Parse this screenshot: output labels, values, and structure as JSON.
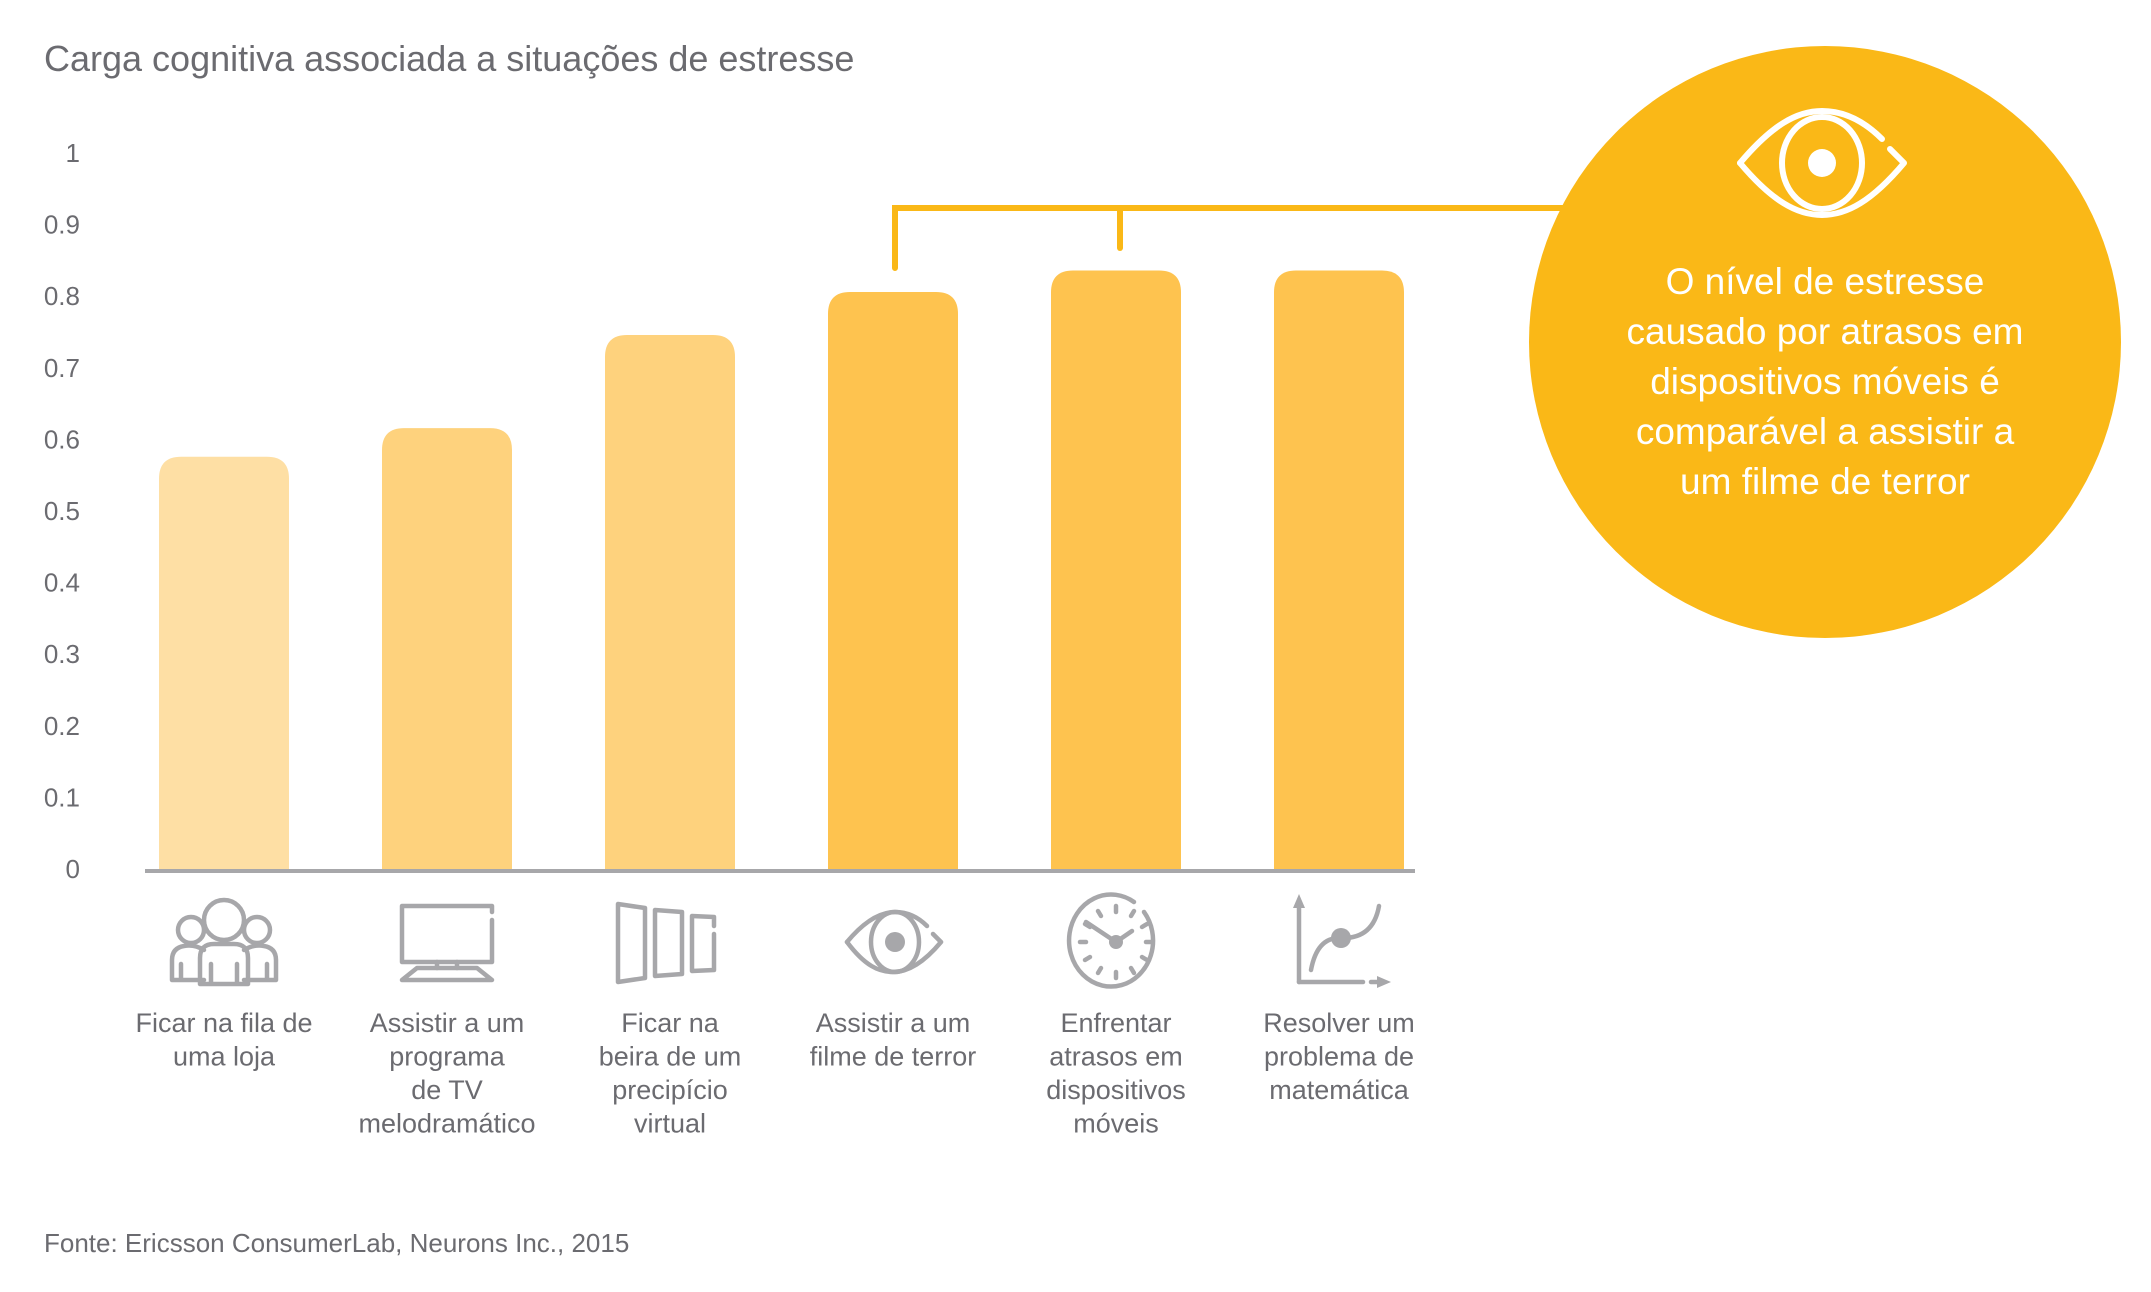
{
  "title": "Carga cognitiva associada a situações de estresse",
  "source": "Fonte: Ericsson ConsumerLab, Neurons Inc., 2015",
  "colors": {
    "bar_light": "#FEDFA4",
    "bar_medium": "#FED27D",
    "bar_dark": "#FEC34F",
    "callout": "#FAB817",
    "axis": "#A7A7AA",
    "icon": "#A7A7AA",
    "text": "#6B6B70"
  },
  "callout": {
    "icon": "eye-icon",
    "lines": [
      "O nível de estresse",
      "causado por atrasos em",
      "dispositivos móveis é",
      "comparável a assistir a",
      "um filme de terror"
    ],
    "links_bars": [
      3,
      4
    ]
  },
  "chart_data": {
    "type": "bar",
    "title": "Carga cognitiva associada a situações de estresse",
    "xlabel": "",
    "ylabel": "",
    "ylim": [
      0,
      1
    ],
    "yticks": [
      "0",
      "0.1",
      "0.2",
      "0.3",
      "0.4",
      "0.5",
      "0.6",
      "0.7",
      "0.8",
      "0.9",
      "1"
    ],
    "ytick_values": [
      0,
      0.1,
      0.2,
      0.3,
      0.4,
      0.5,
      0.6,
      0.7,
      0.8,
      0.9,
      1
    ],
    "grid": false,
    "categories": [
      "Ficar na fila de uma loja",
      "Assistir a um programa de TV melodramático",
      "Ficar na beira de um precipício virtual",
      "Assistir a um filme de terror",
      "Enfrentar atrasos em dispositivos móveis",
      "Resolver um problema de matemática"
    ],
    "category_lines": [
      [
        "Ficar na fila de",
        "uma loja"
      ],
      [
        "Assistir a um",
        "programa",
        "de TV",
        "melodramático"
      ],
      [
        "Ficar na",
        "beira de um",
        "precipício",
        "virtual"
      ],
      [
        "Assistir a um",
        "filme de terror"
      ],
      [
        "Enfrentar",
        "atrasos em",
        "dispositivos",
        "móveis"
      ],
      [
        "Resolver um",
        "problema de",
        "matemática"
      ]
    ],
    "category_icons": [
      "people-group-icon",
      "monitor-icon",
      "panels-icon",
      "eye-icon",
      "clock-icon",
      "graph-icon"
    ],
    "values": [
      0.58,
      0.62,
      0.75,
      0.81,
      0.84,
      0.84
    ],
    "bar_color_keys": [
      "bar_light",
      "bar_medium",
      "bar_medium",
      "bar_dark",
      "bar_dark",
      "bar_dark"
    ]
  }
}
